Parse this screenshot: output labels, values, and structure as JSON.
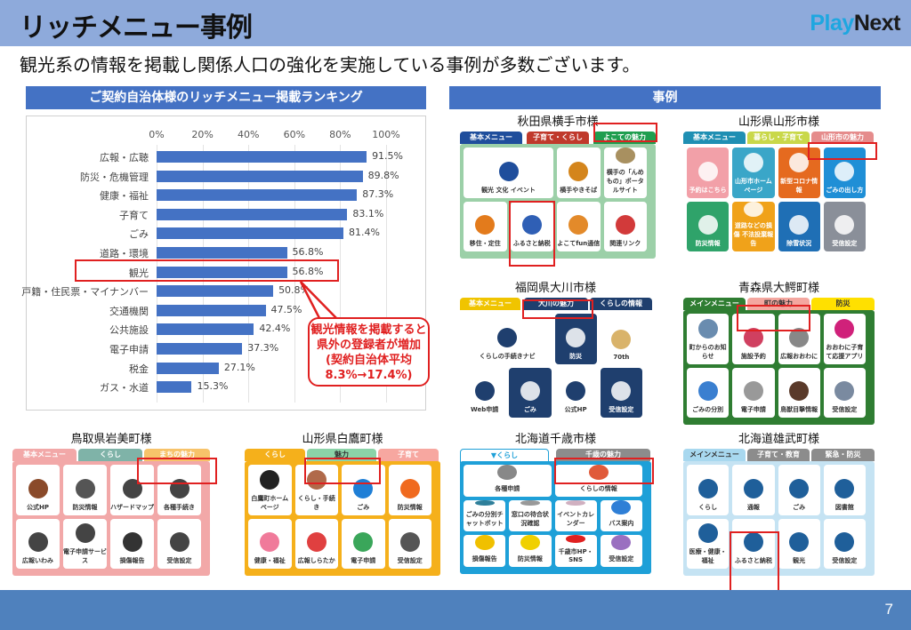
{
  "header": {
    "title": "リッチメニュー事例",
    "logo_play": "Play",
    "logo_next": "Next",
    "subtitle": "観光系の情報を掲載し関係人口の強化を実施している事例が多数ございます。"
  },
  "footer": {
    "page_number": "7"
  },
  "ranking": {
    "heading": "ご契約自治体様のリッチメニュー掲載ランキング",
    "callout": [
      "観光情報を掲載すると",
      "県外の登録者が増加",
      "(契約自治体平均",
      "8.3%→17.4%)"
    ]
  },
  "chart_data": {
    "type": "bar",
    "orientation": "horizontal",
    "title": "ご契約自治体様のリッチメニュー掲載ランキング",
    "xlabel": "",
    "ylabel": "",
    "xlim": [
      0,
      100
    ],
    "ticks": [
      "0%",
      "20%",
      "40%",
      "60%",
      "80%",
      "100%"
    ],
    "grid": true,
    "categories": [
      "広報・広聴",
      "防災・危機管理",
      "健康・福祉",
      "子育て",
      "ごみ",
      "道路・環境",
      "観光",
      "戸籍・住民票・マイナンバー",
      "交通機関",
      "公共施設",
      "電子申請",
      "税金",
      "ガス・水道"
    ],
    "values": [
      91.5,
      89.8,
      87.3,
      83.1,
      81.4,
      56.8,
      56.8,
      50.8,
      47.5,
      42.4,
      37.3,
      27.1,
      15.3
    ],
    "labels": [
      "91.5%",
      "89.8%",
      "87.3%",
      "83.1%",
      "81.4%",
      "56.8%",
      "56.8%",
      "50.8%",
      "47.5%",
      "42.4%",
      "37.3%",
      "27.1%",
      "15.3%"
    ],
    "highlighted": "観光"
  },
  "cases": {
    "heading": "事例",
    "akita": {
      "title": "秋田県横手市様",
      "tabs": [
        "基本メニュー",
        "子育て・くらし",
        "よこての魅力"
      ],
      "tiles": [
        "観光 文化 イベント",
        "横手やきそば",
        "横手の「んめもの」ポータルサイト",
        "移住・定住",
        "ふるさと納税",
        "よこてfun通信",
        "関連リンク"
      ]
    },
    "yamagata": {
      "title": "山形県山形市様",
      "tabs": [
        "基本メニュー",
        "暮らし・子育て",
        "山形市の魅力"
      ],
      "tiles": [
        "予約はこちら",
        "山形市ホームページ",
        "新型コロナ情報",
        "ごみの出し方",
        "防災情報",
        "道路などの損傷 不法投棄報告",
        "除雪状況",
        "受信設定"
      ]
    },
    "okawa": {
      "title": "福岡県大川市様",
      "tabs": [
        "基本メニュー",
        "大川の魅力",
        "くらしの情報"
      ],
      "tiles": [
        "くらしの手続きナビ",
        "防災",
        "70th",
        "Web申請",
        "ごみ",
        "公式HP",
        "受信設定"
      ]
    },
    "owani": {
      "title": "青森県大鰐町様",
      "tabs": [
        "メインメニュー",
        "町の魅力",
        "防災"
      ],
      "tiles": [
        "町からのお知らせ",
        "施設予約",
        "広報おおわに",
        "おおわに子育て応援アプリ",
        "ごみの分別",
        "電子申請",
        "鳥獣目撃情報",
        "受信設定"
      ]
    },
    "iwami": {
      "title": "鳥取県岩美町様",
      "tabs": [
        "基本メニュー",
        "くらし",
        "まちの魅力"
      ],
      "tiles": [
        "公式HP",
        "防災情報",
        "ハザードマップ",
        "各種手続き",
        "広報いわみ",
        "電子申請サービス",
        "損傷報告",
        "受信設定"
      ]
    },
    "shirataka": {
      "title": "山形県白鷹町様",
      "tabs": [
        "くらし",
        "魅力",
        "子育て"
      ],
      "tiles": [
        "白鷹町ホームページ",
        "くらし・手続き",
        "ごみ",
        "防災情報",
        "健康・福祉",
        "広報しらたか",
        "電子申請",
        "受信設定"
      ]
    },
    "chitose": {
      "title": "北海道千歳市様",
      "tabs": [
        "▼くらし",
        "千歳の魅力"
      ],
      "tiles": [
        "各種申請",
        "くらしの情報",
        "ごみの分別チャットボット",
        "窓口の待合状況確認",
        "イベントカレンダー",
        "バス案内",
        "損傷報告",
        "防災情報",
        "千歳市HP・SNS",
        "受信設定"
      ]
    },
    "obu": {
      "title": "北海道雄武町様",
      "tabs": [
        "メインメニュー",
        "子育て・教育",
        "緊急・防災"
      ],
      "tiles": [
        "くらし",
        "通報",
        "ごみ",
        "図書館",
        "医療・健康・福祉",
        "ふるさと納税",
        "観光",
        "受信設定"
      ]
    }
  }
}
